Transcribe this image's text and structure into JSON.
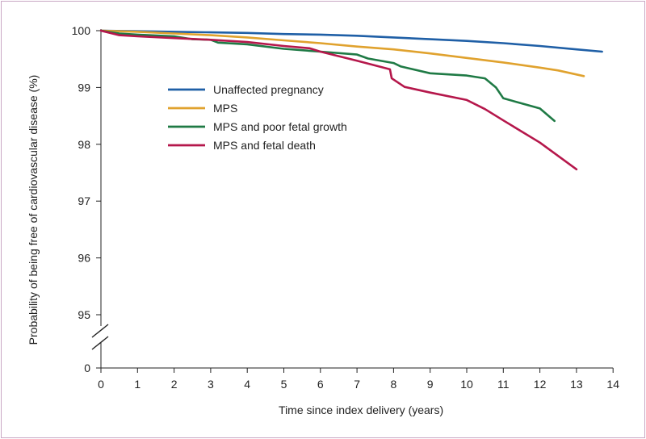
{
  "chart_data": {
    "type": "line",
    "title": "",
    "xlabel": "Time since index delivery (years)",
    "ylabel": "Probability of being free of cardiovascular disease (%)",
    "xlim": [
      0,
      14
    ],
    "x_ticks": [
      0,
      1,
      2,
      3,
      4,
      5,
      6,
      7,
      8,
      9,
      10,
      11,
      12,
      13,
      14
    ],
    "y_ticks": [
      0,
      95,
      96,
      97,
      98,
      99,
      100
    ],
    "y_axis_break": true,
    "legend_position": "upper-left (inside plot)",
    "grid": false,
    "series": [
      {
        "name": "Unaffected pregnancy",
        "color": "#1f5fa6",
        "points": [
          [
            0,
            100
          ],
          [
            1,
            99.99
          ],
          [
            2,
            99.98
          ],
          [
            3,
            99.97
          ],
          [
            4,
            99.96
          ],
          [
            5,
            99.94
          ],
          [
            6,
            99.93
          ],
          [
            7,
            99.91
          ],
          [
            8,
            99.88
          ],
          [
            9,
            99.85
          ],
          [
            10,
            99.82
          ],
          [
            11,
            99.78
          ],
          [
            12,
            99.73
          ],
          [
            13,
            99.67
          ],
          [
            13.7,
            99.63
          ]
        ]
      },
      {
        "name": "MPS",
        "color": "#e0a22e",
        "points": [
          [
            0,
            100
          ],
          [
            1,
            99.98
          ],
          [
            2,
            99.95
          ],
          [
            3,
            99.92
          ],
          [
            4,
            99.88
          ],
          [
            5,
            99.83
          ],
          [
            6,
            99.78
          ],
          [
            7,
            99.72
          ],
          [
            8,
            99.67
          ],
          [
            9,
            99.6
          ],
          [
            10,
            99.52
          ],
          [
            11,
            99.44
          ],
          [
            12,
            99.35
          ],
          [
            12.5,
            99.3
          ],
          [
            13.2,
            99.2
          ]
        ]
      },
      {
        "name": "MPS and poor fetal growth",
        "color": "#1f7a45",
        "points": [
          [
            0,
            100
          ],
          [
            0.5,
            99.95
          ],
          [
            1,
            99.93
          ],
          [
            2,
            99.9
          ],
          [
            2.5,
            99.85
          ],
          [
            3,
            99.84
          ],
          [
            3.2,
            99.79
          ],
          [
            4,
            99.76
          ],
          [
            5,
            99.68
          ],
          [
            6,
            99.63
          ],
          [
            7,
            99.58
          ],
          [
            7.3,
            99.51
          ],
          [
            8,
            99.43
          ],
          [
            8.2,
            99.37
          ],
          [
            9,
            99.25
          ],
          [
            10,
            99.21
          ],
          [
            10.5,
            99.16
          ],
          [
            10.8,
            99
          ],
          [
            11,
            98.81
          ],
          [
            12,
            98.63
          ],
          [
            12.4,
            98.41
          ]
        ]
      },
      {
        "name": "MPS and fetal death",
        "color": "#b5174b",
        "points": [
          [
            0,
            100
          ],
          [
            0.5,
            99.92
          ],
          [
            1,
            99.9
          ],
          [
            2,
            99.87
          ],
          [
            3,
            99.84
          ],
          [
            4,
            99.8
          ],
          [
            5,
            99.73
          ],
          [
            5.7,
            99.69
          ],
          [
            6,
            99.63
          ],
          [
            7,
            99.47
          ],
          [
            7.9,
            99.32
          ],
          [
            7.95,
            99.16
          ],
          [
            8.3,
            99.01
          ],
          [
            9,
            98.91
          ],
          [
            10,
            98.78
          ],
          [
            10.5,
            98.62
          ],
          [
            11,
            98.42
          ],
          [
            12,
            98.03
          ],
          [
            13,
            97.56
          ]
        ]
      }
    ]
  }
}
